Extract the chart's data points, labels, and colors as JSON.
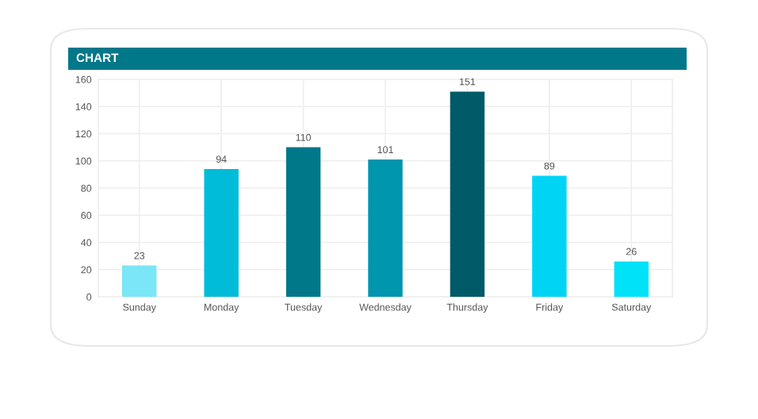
{
  "chart_data": {
    "type": "bar",
    "title": "CHART",
    "categories": [
      "Sunday",
      "Monday",
      "Tuesday",
      "Wednesday",
      "Thursday",
      "Friday",
      "Saturday"
    ],
    "values": [
      23,
      94,
      110,
      101,
      151,
      89,
      26
    ],
    "colors": [
      "#7be6f7",
      "#00bcd9",
      "#00788a",
      "#0096ad",
      "#005a67",
      "#00d4f5",
      "#00e2f8"
    ],
    "ylim": [
      0,
      160
    ],
    "yticks": [
      0,
      20,
      40,
      60,
      80,
      100,
      120,
      140,
      160
    ],
    "grid": true,
    "data_labels": true
  }
}
